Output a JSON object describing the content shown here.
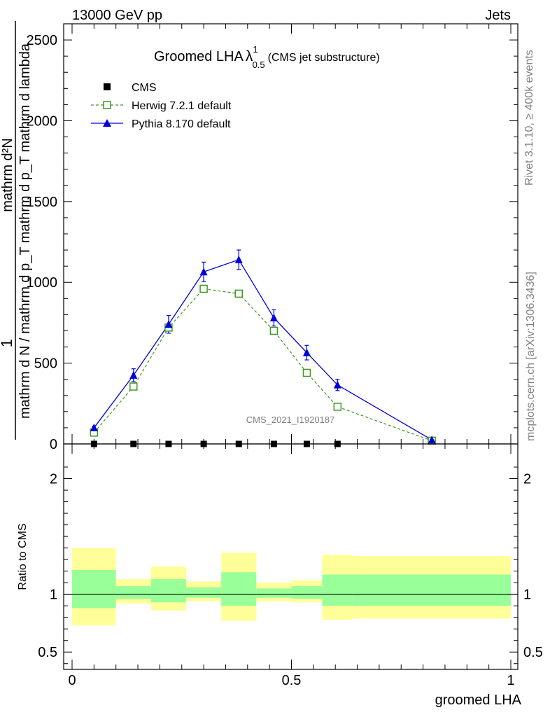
{
  "header": {
    "energy_label": "13000 GeV pp",
    "process_label": "Jets"
  },
  "side_labels": {
    "rivet": "Rivet 3.1.10, ≥ 400k events",
    "mcplots": "mcplots.cern.ch [arXiv:1306.3436]"
  },
  "watermark": "CMS_2021_I1920187",
  "colors": {
    "herwig": "#3c9a1e",
    "pythia": "#0000dd",
    "band_outer": "#ffff99",
    "band_inner": "#99ff99"
  },
  "chart_data": [
    {
      "type": "line",
      "title": "Groomed LHA",
      "title_symbol": "λ",
      "title_sup": "1",
      "title_sub": "0.5",
      "title_note": "(CMS jet substructure)",
      "ylabel_top": "1",
      "ylabel_num": "mathrm d²N",
      "ylabel_den": "mathrm d N / mathrm d p_T mathrm d p_T mathrm d lambda",
      "ylim": [
        0,
        2600
      ],
      "xlim": [
        0,
        1
      ],
      "y_ticks": [
        0,
        500,
        1000,
        1500,
        2000,
        2500
      ],
      "y_tick_labels": [
        "0",
        "500",
        "1000",
        "1500",
        "2000",
        "2500"
      ],
      "legend_position": "top-left",
      "series": [
        {
          "name": "CMS",
          "marker": "square-filled",
          "color": "#000000",
          "x": [
            0.05,
            0.14,
            0.22,
            0.3,
            0.38,
            0.46,
            0.535,
            0.605
          ],
          "values": [
            0,
            0,
            0,
            0,
            0,
            0,
            0,
            0
          ]
        },
        {
          "name": "Herwig 7.2.1 default",
          "marker": "square-open",
          "color": "#3c9a1e",
          "dash": true,
          "x": [
            0.05,
            0.14,
            0.22,
            0.3,
            0.38,
            0.46,
            0.535,
            0.605,
            0.82
          ],
          "values": [
            70,
            355,
            720,
            960,
            930,
            700,
            440,
            230,
            20
          ]
        },
        {
          "name": "Pythia 8.170 default",
          "marker": "triangle",
          "color": "#0000dd",
          "x": [
            0.05,
            0.14,
            0.22,
            0.3,
            0.38,
            0.46,
            0.535,
            0.605,
            0.82
          ],
          "values": [
            100,
            425,
            740,
            1065,
            1140,
            780,
            565,
            365,
            25
          ],
          "errors": [
            10,
            40,
            55,
            60,
            60,
            50,
            45,
            35,
            5
          ]
        }
      ]
    },
    {
      "type": "area",
      "ylabel": "Ratio to CMS",
      "xlabel": "groomed LHA",
      "xlim": [
        0,
        1
      ],
      "ylim": [
        0.35,
        2.3
      ],
      "x_ticks": [
        0,
        0.5,
        1
      ],
      "x_tick_labels": [
        "0",
        "0.5",
        "1"
      ],
      "y_ticks": [
        0.5,
        1,
        2
      ],
      "y_tick_labels": [
        "0.5",
        "1",
        "2"
      ],
      "reference_line": 1,
      "bins": [
        {
          "x0": 0.0,
          "x1": 0.1,
          "outer": [
            0.73,
            1.4
          ],
          "inner": [
            0.88,
            1.21
          ]
        },
        {
          "x0": 0.1,
          "x1": 0.18,
          "outer": [
            0.92,
            1.13
          ],
          "inner": [
            0.96,
            1.07
          ]
        },
        {
          "x0": 0.18,
          "x1": 0.26,
          "outer": [
            0.86,
            1.24
          ],
          "inner": [
            0.93,
            1.13
          ]
        },
        {
          "x0": 0.26,
          "x1": 0.34,
          "outer": [
            0.94,
            1.11
          ],
          "inner": [
            0.97,
            1.06
          ]
        },
        {
          "x0": 0.34,
          "x1": 0.42,
          "outer": [
            0.77,
            1.36
          ],
          "inner": [
            0.9,
            1.19
          ]
        },
        {
          "x0": 0.42,
          "x1": 0.5,
          "outer": [
            0.94,
            1.1
          ],
          "inner": [
            0.97,
            1.05
          ]
        },
        {
          "x0": 0.5,
          "x1": 0.57,
          "outer": [
            0.93,
            1.12
          ],
          "inner": [
            0.96,
            1.07
          ]
        },
        {
          "x0": 0.57,
          "x1": 0.64,
          "outer": [
            0.78,
            1.34
          ],
          "inner": [
            0.9,
            1.17
          ]
        },
        {
          "x0": 0.64,
          "x1": 1.0,
          "outer": [
            0.79,
            1.33
          ],
          "inner": [
            0.9,
            1.17
          ]
        }
      ]
    }
  ]
}
